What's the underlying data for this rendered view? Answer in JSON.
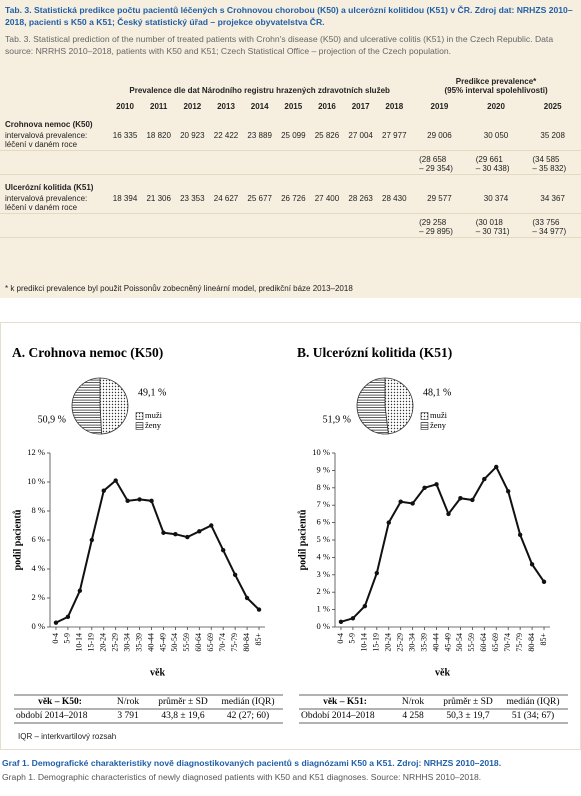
{
  "table_caption": {
    "cs": "Tab. 3. Statistická predikce počtu pacientů léčených s Crohnovou chorobou (K50) a ulcerózní kolitidou (K51) v ČR. Zdroj dat: NRHZS 2010–2018, pacienti s K50 a K51; Český statistický úřad – projekce obyvatelstva ČR.",
    "en": "Tab. 3. Statistical prediction of the number of treated patients with Crohn's disease (K50) and ulcerative colitis (K51) in the Czech Republic. Data source: NRRHS 2010–2018, patients with K50 and K51; Czech Statistical Office – projection of the Czech population."
  },
  "table": {
    "group_headers": [
      "Prevalence dle dat Národního registru hrazených zdravotních služeb",
      [
        "Predikce prevalence*",
        "(95% interval spolehlivosti)"
      ]
    ],
    "years": [
      "2010",
      "2011",
      "2012",
      "2013",
      "2014",
      "2015",
      "2016",
      "2017",
      "2018",
      "2019",
      "2020",
      "2025"
    ],
    "sections": [
      {
        "title": "Crohnova nemoc (K50)",
        "row_label": [
          "intervalová prevalence:",
          "léčení v daném roce"
        ],
        "values": [
          "16 335",
          "18 820",
          "20 923",
          "22 422",
          "23 889",
          "25 099",
          "25 826",
          "27 004",
          "27 977",
          "29 006",
          "30 050",
          "35 208"
        ],
        "ci": [
          [
            "(28 658",
            "– 29 354)"
          ],
          [
            "(29 661",
            "– 30 438)"
          ],
          [
            "(34 585",
            "– 35 832)"
          ]
        ]
      },
      {
        "title": "Ulcerózní kolitida (K51)",
        "row_label": [
          "intervalová prevalence:",
          "léčení v daném roce"
        ],
        "values": [
          "18 394",
          "21 306",
          "23 353",
          "24 627",
          "25 677",
          "26 726",
          "27 400",
          "28 263",
          "28 430",
          "29 577",
          "30 374",
          "34 367"
        ],
        "ci": [
          [
            "(29 258",
            "– 29 895)"
          ],
          [
            "(30 018",
            "– 30 731)"
          ],
          [
            "(33 756",
            "– 34 977)"
          ]
        ]
      }
    ],
    "footnote": "* k predikci prevalence byl použit Poissonův zobecněný lineární model, predikční báze 2013–2018"
  },
  "chart_data": [
    {
      "type": "line",
      "title": "A. Crohnova nemoc (K50)",
      "x_label": "věk",
      "y_label": "podíl pacientů",
      "categories": [
        "0-4",
        "5-9",
        "10-14",
        "15-19",
        "20-24",
        "25-29",
        "30-34",
        "35-39",
        "40-44",
        "45-49",
        "50-54",
        "55-59",
        "60-64",
        "65-69",
        "70-74",
        "75-79",
        "80-84",
        "85+"
      ],
      "values": [
        0.3,
        0.7,
        2.5,
        6.0,
        9.4,
        10.1,
        8.7,
        8.8,
        8.7,
        6.5,
        6.4,
        6.2,
        6.6,
        7.0,
        5.3,
        3.6,
        2.0,
        1.2
      ],
      "color": "#111111",
      "ylim": [
        0,
        12
      ],
      "yticks": [
        {
          "value": 0,
          "label": "0 %"
        },
        {
          "value": 2,
          "label": "2 %"
        },
        {
          "value": 4,
          "label": "4 %"
        },
        {
          "value": 6,
          "label": "6 %"
        },
        {
          "value": 8,
          "label": "8 %"
        },
        {
          "value": 10,
          "label": "10 %"
        },
        {
          "value": 12,
          "label": "12 %"
        }
      ]
    },
    {
      "type": "pie",
      "categories": [
        "muži",
        "ženy"
      ],
      "values": [
        49.1,
        50.9
      ],
      "value_labels": [
        "49,1 %",
        "50,9 %"
      ],
      "patterns": [
        "dots",
        "hlines"
      ]
    },
    {
      "type": "line",
      "title": "B. Ulcerózní kolitida (K51)",
      "x_label": "věk",
      "y_label": "podíl pacientů",
      "categories": [
        "0-4",
        "5-9",
        "10-14",
        "15-19",
        "20-24",
        "25-29",
        "30-34",
        "35-39",
        "40-44",
        "45-49",
        "50-54",
        "55-59",
        "60-64",
        "65-69",
        "70-74",
        "75-79",
        "80-84",
        "85+"
      ],
      "values": [
        0.3,
        0.5,
        1.2,
        3.1,
        6.0,
        7.2,
        7.1,
        8.0,
        8.2,
        6.5,
        7.4,
        7.3,
        8.5,
        9.2,
        7.8,
        5.3,
        3.6,
        2.6
      ],
      "color": "#111111",
      "ylim": [
        0,
        10
      ],
      "yticks": [
        {
          "value": 0,
          "label": "0 %"
        },
        {
          "value": 1,
          "label": "1 %"
        },
        {
          "value": 2,
          "label": "2 %"
        },
        {
          "value": 3,
          "label": "3 %"
        },
        {
          "value": 4,
          "label": "4 %"
        },
        {
          "value": 5,
          "label": "5 %"
        },
        {
          "value": 6,
          "label": "6 %"
        },
        {
          "value": 7,
          "label": "7 %"
        },
        {
          "value": 8,
          "label": "8 %"
        },
        {
          "value": 9,
          "label": "9 %"
        },
        {
          "value": 10,
          "label": "10 %"
        }
      ]
    },
    {
      "type": "pie",
      "categories": [
        "muži",
        "ženy"
      ],
      "values": [
        48.1,
        51.9
      ],
      "value_labels": [
        "48,1 %",
        "51,9 %"
      ],
      "patterns": [
        "dots",
        "hlines"
      ]
    }
  ],
  "stats_tables": [
    {
      "header": [
        "věk – K50:",
        "N/rok",
        "průměr ± SD",
        "medián (IQR)"
      ],
      "row": [
        "období 2014–2018",
        "3 791",
        "43,8 ± 19,6",
        "42 (27; 60)"
      ]
    },
    {
      "header": [
        "věk – K51:",
        "N/rok",
        "průměr ± SD",
        "medián (IQR)"
      ],
      "row": [
        "Období 2014–2018",
        "4 258",
        "50,3 ± 19,7",
        "51 (34; 67)"
      ]
    }
  ],
  "iqr_note": "IQR – interkvartilový rozsah",
  "figure_caption": {
    "cs": "Graf 1. Demografické charakteristiky nově diagnostikovaných pacientů s diagnózami K50 a K51. Zdroj: NRHZS 2010–2018.",
    "en": "Graph 1. Demographic characteristics of newly diagnosed patients with K50 and K51 diagnoses. Source: NRHHS 2010–2018."
  }
}
